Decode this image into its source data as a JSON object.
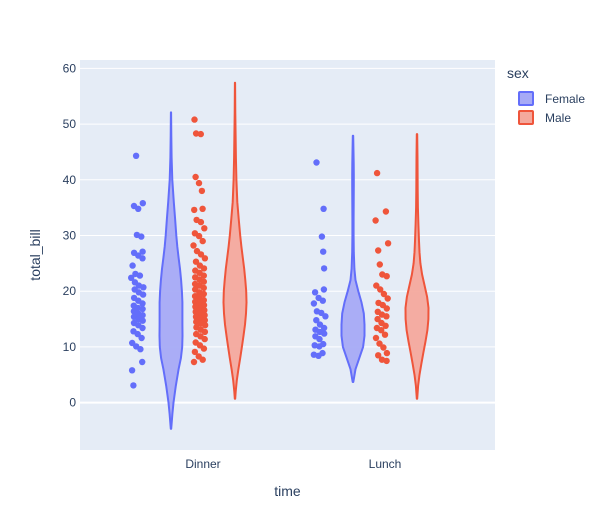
{
  "chart_data": {
    "type": "violin",
    "categories": [
      "Dinner",
      "Lunch"
    ],
    "xlabel": "time",
    "ylabel": "total_bill",
    "ylim": [
      -8.5,
      61.5
    ],
    "yticks": [
      0,
      10,
      20,
      30,
      40,
      50,
      60
    ],
    "grid": true,
    "plot_background": "#e5ecf6",
    "grid_color": "#ffffff",
    "legend": {
      "title": "sex",
      "placement": "top-right",
      "entries": [
        "Female",
        "Male"
      ]
    },
    "series": [
      {
        "name": "Female",
        "color": "#636efa",
        "fill": "#a6aaf6",
        "violins": [
          {
            "category": "Dinner",
            "range": [
              -4.7,
              52.1
            ],
            "density": [
              [
                -4.7,
                0.02
              ],
              [
                -2,
                0.12
              ],
              [
                0,
                0.22
              ],
              [
                3,
                0.42
              ],
              [
                6,
                0.66
              ],
              [
                8,
                0.86
              ],
              [
                10,
                0.97
              ],
              [
                12,
                1.0
              ],
              [
                14,
                0.99
              ],
              [
                16,
                0.99
              ],
              [
                18,
                0.99
              ],
              [
                20,
                0.95
              ],
              [
                22,
                0.88
              ],
              [
                24,
                0.78
              ],
              [
                26,
                0.66
              ],
              [
                28,
                0.55
              ],
              [
                30,
                0.46
              ],
              [
                33,
                0.36
              ],
              [
                36,
                0.24
              ],
              [
                40,
                0.11
              ],
              [
                44,
                0.05
              ],
              [
                48,
                0.03
              ],
              [
                52.1,
                0.01
              ]
            ],
            "points": [
              44.3,
              35.8,
              35.3,
              34.8,
              30.1,
              29.8,
              27.1,
              26.9,
              26.4,
              25.9,
              24.6,
              23.1,
              22.8,
              22.4,
              21.6,
              21.0,
              20.7,
              20.3,
              19.8,
              19.4,
              18.8,
              18.3,
              17.8,
              17.4,
              17.0,
              16.8,
              16.4,
              16.0,
              15.7,
              15.4,
              15.0,
              14.7,
              14.3,
              13.9,
              13.4,
              12.8,
              12.3,
              11.6,
              10.7,
              10.1,
              9.6,
              7.3,
              5.8,
              3.1
            ]
          },
          {
            "category": "Lunch",
            "range": [
              3.7,
              47.9
            ],
            "density": [
              [
                3.7,
                0.03
              ],
              [
                6,
                0.22
              ],
              [
                8,
                0.55
              ],
              [
                10,
                0.88
              ],
              [
                12,
                1.0
              ],
              [
                14,
                1.0
              ],
              [
                16,
                0.94
              ],
              [
                18,
                0.74
              ],
              [
                20,
                0.46
              ],
              [
                22,
                0.22
              ],
              [
                24,
                0.12
              ],
              [
                27,
                0.07
              ],
              [
                30,
                0.05
              ],
              [
                33,
                0.05
              ],
              [
                36,
                0.06
              ],
              [
                39,
                0.07
              ],
              [
                41,
                0.07
              ],
              [
                43,
                0.06
              ],
              [
                45,
                0.04
              ],
              [
                47.9,
                0.02
              ]
            ],
            "points": [
              43.1,
              34.8,
              29.8,
              27.1,
              24.1,
              20.3,
              19.8,
              18.8,
              18.3,
              17.8,
              16.4,
              16.1,
              15.5,
              14.8,
              14.0,
              13.4,
              13.1,
              12.7,
              12.4,
              11.9,
              11.4,
              10.5,
              10.3,
              10.1,
              8.9,
              8.6,
              8.4
            ]
          }
        ]
      },
      {
        "name": "Male",
        "color": "#ef553b",
        "fill": "#f4a99d",
        "violins": [
          {
            "category": "Dinner",
            "range": [
              0.7,
              57.4
            ],
            "density": [
              [
                0.7,
                0.02
              ],
              [
                2,
                0.06
              ],
              [
                4,
                0.16
              ],
              [
                6,
                0.3
              ],
              [
                8,
                0.45
              ],
              [
                10,
                0.6
              ],
              [
                12,
                0.74
              ],
              [
                14,
                0.87
              ],
              [
                16,
                0.96
              ],
              [
                18,
                1.0
              ],
              [
                20,
                0.97
              ],
              [
                22,
                0.9
              ],
              [
                24,
                0.8
              ],
              [
                26,
                0.68
              ],
              [
                28,
                0.56
              ],
              [
                30,
                0.45
              ],
              [
                33,
                0.32
              ],
              [
                36,
                0.2
              ],
              [
                40,
                0.12
              ],
              [
                44,
                0.08
              ],
              [
                48,
                0.05
              ],
              [
                52,
                0.03
              ],
              [
                57.4,
                0.01
              ]
            ],
            "points": [
              50.8,
              48.3,
              48.2,
              40.5,
              39.4,
              38.0,
              34.8,
              34.6,
              32.8,
              32.4,
              31.3,
              30.4,
              29.9,
              29.0,
              28.2,
              27.2,
              26.6,
              25.9,
              25.3,
              24.6,
              24.1,
              23.7,
              23.3,
              22.8,
              22.5,
              22.1,
              21.7,
              21.3,
              21.0,
              20.6,
              20.3,
              19.8,
              19.5,
              19.1,
              18.8,
              18.4,
              18.1,
              17.8,
              17.5,
              17.2,
              16.9,
              16.6,
              16.3,
              16.0,
              15.7,
              15.4,
              15.1,
              14.8,
              14.5,
              14.2,
              13.9,
              13.5,
              13.1,
              12.7,
              12.3,
              11.9,
              11.4,
              10.8,
              10.3,
              9.7,
              9.1,
              8.3,
              7.7,
              7.3
            ]
          },
          {
            "category": "Lunch",
            "range": [
              0.7,
              48.2
            ],
            "density": [
              [
                0.7,
                0.02
              ],
              [
                3,
                0.1
              ],
              [
                5,
                0.22
              ],
              [
                7,
                0.38
              ],
              [
                9,
                0.56
              ],
              [
                11,
                0.74
              ],
              [
                13,
                0.9
              ],
              [
                15,
                0.99
              ],
              [
                17,
                1.0
              ],
              [
                19,
                0.88
              ],
              [
                21,
                0.66
              ],
              [
                23,
                0.44
              ],
              [
                25,
                0.3
              ],
              [
                27,
                0.22
              ],
              [
                29,
                0.17
              ],
              [
                32,
                0.12
              ],
              [
                35,
                0.08
              ],
              [
                38,
                0.06
              ],
              [
                41,
                0.05
              ],
              [
                44,
                0.04
              ],
              [
                48.2,
                0.02
              ]
            ],
            "points": [
              41.2,
              34.3,
              32.7,
              28.6,
              27.3,
              24.8,
              23.0,
              22.7,
              21.0,
              20.3,
              19.5,
              18.7,
              17.9,
              17.5,
              16.9,
              16.3,
              15.8,
              15.5,
              15.0,
              14.3,
              13.8,
              13.4,
              13.0,
              12.2,
              11.6,
              10.6,
              9.9,
              8.9,
              8.5,
              7.7,
              7.5
            ]
          }
        ]
      }
    ]
  }
}
